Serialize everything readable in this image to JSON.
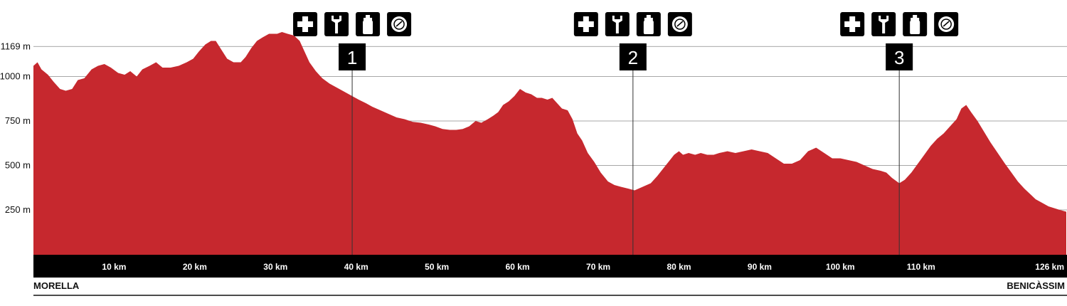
{
  "chart_data": {
    "type": "area",
    "x_unit": "km",
    "y_unit": "m",
    "xlim": [
      0,
      128
    ],
    "ylim": [
      -170,
      1430
    ],
    "y_ticks": [
      {
        "value": 250,
        "label": "250 m"
      },
      {
        "value": 500,
        "label": "500 m"
      },
      {
        "value": 750,
        "label": "750 m"
      },
      {
        "value": 1000,
        "label": "1000 m"
      },
      {
        "value": 1169,
        "label": "1169 m"
      }
    ],
    "x_ticks": [
      {
        "value": 10,
        "label": "10 km"
      },
      {
        "value": 20,
        "label": "20 km"
      },
      {
        "value": 30,
        "label": "30 km"
      },
      {
        "value": 40,
        "label": "40 km"
      },
      {
        "value": 50,
        "label": "50 km"
      },
      {
        "value": 60,
        "label": "60 km"
      },
      {
        "value": 70,
        "label": "70 km"
      },
      {
        "value": 80,
        "label": "80 km"
      },
      {
        "value": 90,
        "label": "90 km"
      },
      {
        "value": 100,
        "label": "100 km"
      },
      {
        "value": 110,
        "label": "110 km"
      },
      {
        "value": 126,
        "label": "126 km"
      }
    ],
    "fill_color": "#c6282e",
    "band_color": "#000000",
    "grid": true,
    "start_label": "MORELLA",
    "end_label": "BENICÀSSIM",
    "checkpoints": [
      {
        "km": 39.5,
        "label": "1",
        "icons": [
          "first-aid-icon",
          "wrench-icon",
          "bottle-icon",
          "food-plate-icon"
        ]
      },
      {
        "km": 74.3,
        "label": "2",
        "icons": [
          "first-aid-icon",
          "wrench-icon",
          "bottle-icon",
          "food-plate-icon"
        ]
      },
      {
        "km": 107.3,
        "label": "3",
        "icons": [
          "first-aid-icon",
          "wrench-icon",
          "bottle-icon",
          "food-plate-icon"
        ]
      }
    ],
    "profile": [
      [
        0,
        1060
      ],
      [
        0.5,
        1080
      ],
      [
        1,
        1040
      ],
      [
        1.8,
        1010
      ],
      [
        2.5,
        970
      ],
      [
        3.3,
        930
      ],
      [
        4.0,
        920
      ],
      [
        4.8,
        930
      ],
      [
        5.5,
        980
      ],
      [
        6.3,
        990
      ],
      [
        7.2,
        1040
      ],
      [
        8.0,
        1060
      ],
      [
        8.8,
        1070
      ],
      [
        9.6,
        1050
      ],
      [
        10.5,
        1020
      ],
      [
        11.3,
        1010
      ],
      [
        12.0,
        1030
      ],
      [
        12.8,
        1000
      ],
      [
        13.5,
        1040
      ],
      [
        14.4,
        1060
      ],
      [
        15.2,
        1080
      ],
      [
        16.0,
        1050
      ],
      [
        17.0,
        1050
      ],
      [
        18.0,
        1060
      ],
      [
        19.0,
        1080
      ],
      [
        19.8,
        1100
      ],
      [
        20.5,
        1140
      ],
      [
        21.3,
        1180
      ],
      [
        22.0,
        1200
      ],
      [
        22.6,
        1200
      ],
      [
        23.3,
        1150
      ],
      [
        24.0,
        1100
      ],
      [
        24.8,
        1080
      ],
      [
        25.7,
        1080
      ],
      [
        26.3,
        1110
      ],
      [
        27.0,
        1160
      ],
      [
        27.7,
        1200
      ],
      [
        28.4,
        1220
      ],
      [
        29.2,
        1240
      ],
      [
        30.2,
        1240
      ],
      [
        30.8,
        1250
      ],
      [
        31.5,
        1240
      ],
      [
        32.3,
        1230
      ],
      [
        33.0,
        1200
      ],
      [
        33.5,
        1150
      ],
      [
        34.2,
        1080
      ],
      [
        35.0,
        1030
      ],
      [
        35.8,
        990
      ],
      [
        36.7,
        960
      ],
      [
        37.5,
        940
      ],
      [
        38.3,
        920
      ],
      [
        39.5,
        890
      ],
      [
        40.3,
        870
      ],
      [
        41.2,
        850
      ],
      [
        42.0,
        830
      ],
      [
        43.0,
        810
      ],
      [
        44.0,
        790
      ],
      [
        45.0,
        770
      ],
      [
        46.0,
        760
      ],
      [
        47.0,
        745
      ],
      [
        48.0,
        740
      ],
      [
        49.0,
        730
      ],
      [
        49.8,
        720
      ],
      [
        50.7,
        705
      ],
      [
        51.6,
        700
      ],
      [
        52.4,
        700
      ],
      [
        53.2,
        705
      ],
      [
        54.0,
        720
      ],
      [
        54.8,
        750
      ],
      [
        55.5,
        740
      ],
      [
        56.3,
        760
      ],
      [
        57.0,
        780
      ],
      [
        57.6,
        800
      ],
      [
        58.2,
        840
      ],
      [
        58.9,
        860
      ],
      [
        59.6,
        890
      ],
      [
        60.3,
        930
      ],
      [
        61.0,
        910
      ],
      [
        61.7,
        900
      ],
      [
        62.4,
        880
      ],
      [
        63.0,
        880
      ],
      [
        63.7,
        870
      ],
      [
        64.3,
        880
      ],
      [
        64.9,
        850
      ],
      [
        65.5,
        820
      ],
      [
        66.2,
        810
      ],
      [
        66.8,
        760
      ],
      [
        67.4,
        680
      ],
      [
        68.0,
        640
      ],
      [
        68.7,
        570
      ],
      [
        69.5,
        520
      ],
      [
        70.3,
        460
      ],
      [
        71.2,
        410
      ],
      [
        72.0,
        390
      ],
      [
        72.8,
        380
      ],
      [
        73.7,
        370
      ],
      [
        74.5,
        360
      ],
      [
        75.5,
        380
      ],
      [
        76.5,
        400
      ],
      [
        77.3,
        440
      ],
      [
        78.0,
        480
      ],
      [
        78.7,
        520
      ],
      [
        79.4,
        560
      ],
      [
        80.0,
        580
      ],
      [
        80.5,
        560
      ],
      [
        81.2,
        570
      ],
      [
        82.0,
        560
      ],
      [
        82.7,
        570
      ],
      [
        83.5,
        560
      ],
      [
        84.3,
        560
      ],
      [
        85.0,
        570
      ],
      [
        86.0,
        580
      ],
      [
        87.0,
        570
      ],
      [
        88.0,
        580
      ],
      [
        89.0,
        590
      ],
      [
        90.0,
        580
      ],
      [
        91.0,
        570
      ],
      [
        92.0,
        540
      ],
      [
        93.0,
        510
      ],
      [
        94.0,
        510
      ],
      [
        95.0,
        530
      ],
      [
        96.0,
        580
      ],
      [
        97.0,
        600
      ],
      [
        98.0,
        570
      ],
      [
        99.0,
        540
      ],
      [
        100.0,
        540
      ],
      [
        101.0,
        530
      ],
      [
        102.0,
        520
      ],
      [
        103.0,
        500
      ],
      [
        104.0,
        480
      ],
      [
        105.0,
        470
      ],
      [
        105.7,
        460
      ],
      [
        106.4,
        430
      ],
      [
        107.3,
        400
      ],
      [
        108.0,
        420
      ],
      [
        108.8,
        460
      ],
      [
        109.6,
        510
      ],
      [
        110.4,
        560
      ],
      [
        111.2,
        610
      ],
      [
        112.0,
        650
      ],
      [
        112.8,
        680
      ],
      [
        113.6,
        720
      ],
      [
        114.4,
        760
      ],
      [
        115.0,
        820
      ],
      [
        115.6,
        840
      ],
      [
        116.2,
        800
      ],
      [
        117.0,
        750
      ],
      [
        117.8,
        690
      ],
      [
        118.6,
        630
      ],
      [
        119.5,
        570
      ],
      [
        120.4,
        510
      ],
      [
        121.2,
        460
      ],
      [
        122.0,
        410
      ],
      [
        122.8,
        370
      ],
      [
        123.5,
        340
      ],
      [
        124.2,
        310
      ],
      [
        125.0,
        290
      ],
      [
        125.8,
        270
      ],
      [
        126.5,
        260
      ],
      [
        127.2,
        250
      ],
      [
        128.0,
        240
      ]
    ]
  }
}
